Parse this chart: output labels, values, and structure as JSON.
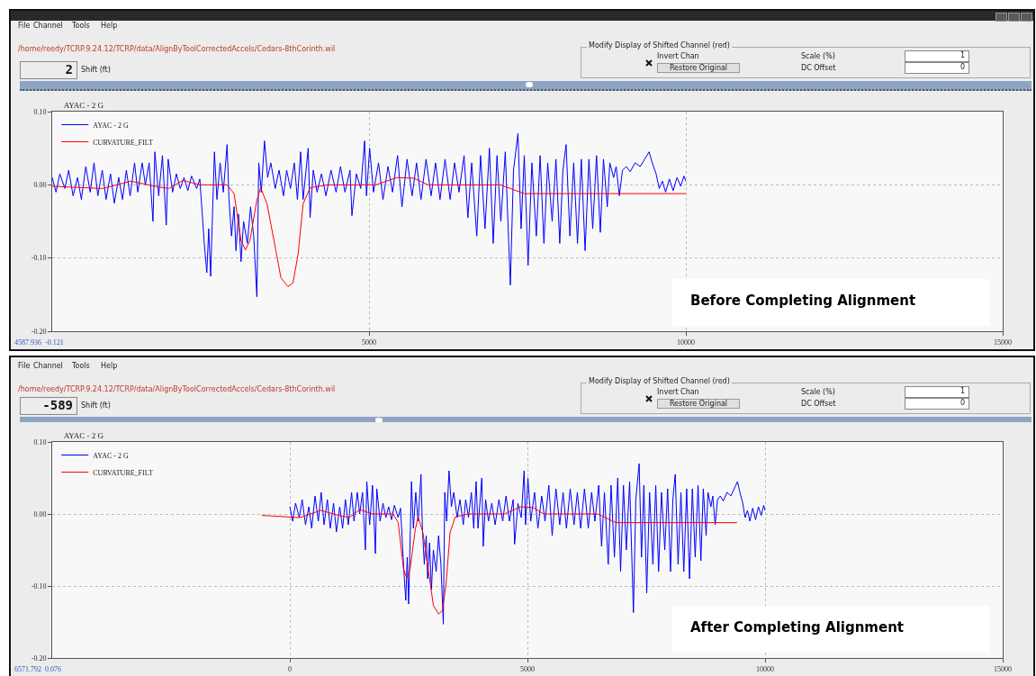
{
  "chart_data": [
    {
      "type": "line",
      "title": "AYAC - 2 G",
      "legend": "top left",
      "grid": true,
      "xlim": [
        0,
        15000
      ],
      "xticks": [
        5000,
        10000,
        15000
      ],
      "ylim": [
        -0.2,
        0.1
      ],
      "yticks": [
        {
          "value": 0.1,
          "label": "0.10"
        },
        {
          "value": 0,
          "label": "0.00"
        },
        {
          "value": -0.1,
          "label": "-0.10"
        },
        {
          "value": -0.2,
          "label": "-0.20"
        }
      ],
      "series": [
        {
          "name": "AYAC - 2 G",
          "color": "#0000ff",
          "x": [
            0,
            60,
            120,
            200,
            260,
            330,
            400,
            460,
            530,
            600,
            660,
            720,
            790,
            850,
            920,
            980,
            1050,
            1110,
            1170,
            1230,
            1300,
            1350,
            1420,
            1470,
            1530,
            1590,
            1620,
            1680,
            1740,
            1800,
            1830,
            1900,
            1960,
            2020,
            2080,
            2140,
            2200,
            2280,
            2330,
            2360,
            2400,
            2440,
            2470,
            2500,
            2530,
            2560,
            2600,
            2650,
            2700,
            2760,
            2790,
            2830,
            2870,
            2900,
            2940,
            2980,
            3020,
            3080,
            3130,
            3180,
            3230,
            3260,
            3300,
            3350,
            3400,
            3450,
            3520,
            3580,
            3650,
            3700,
            3760,
            3820,
            3870,
            3920,
            3960,
            4040,
            4070,
            4120,
            4180,
            4250,
            4320,
            4400,
            4480,
            4550,
            4620,
            4700,
            4730,
            4800,
            4870,
            4930,
            4960,
            5010,
            5070,
            5150,
            5220,
            5300,
            5370,
            5450,
            5520,
            5600,
            5680,
            5750,
            5820,
            5900,
            5980,
            6050,
            6120,
            6200,
            6280,
            6350,
            6420,
            6500,
            6560,
            6620,
            6700,
            6760,
            6830,
            6900,
            6960,
            7020,
            7080,
            7150,
            7230,
            7280,
            7350,
            7400,
            7450,
            7510,
            7570,
            7640,
            7700,
            7760,
            7820,
            7890,
            7950,
            8010,
            8060,
            8110,
            8170,
            8230,
            8290,
            8350,
            8410,
            8470,
            8530,
            8590,
            8650,
            8700,
            8760,
            8800,
            8860,
            8900,
            8950,
            9000,
            9060,
            9120,
            9200,
            9280,
            9350,
            9420,
            9470,
            9530,
            9580,
            9630,
            9680,
            9740,
            9800,
            9860,
            9920,
            9970,
            10000
          ],
          "values": [
            0.01,
            -0.01,
            0.015,
            -0.005,
            0.02,
            -0.015,
            0.01,
            -0.02,
            0.025,
            -0.01,
            0.03,
            -0.015,
            0.02,
            -0.02,
            0.015,
            -0.025,
            0.01,
            -0.02,
            0.02,
            -0.015,
            0.03,
            -0.01,
            0.03,
            0.0,
            0.03,
            -0.05,
            0.045,
            -0.015,
            0.04,
            -0.055,
            0.035,
            -0.01,
            0.015,
            -0.005,
            0.01,
            -0.008,
            0.012,
            -0.005,
            0.008,
            -0.03,
            -0.08,
            -0.12,
            -0.06,
            -0.125,
            -0.04,
            0.045,
            -0.02,
            0.03,
            -0.01,
            0.055,
            -0.02,
            -0.07,
            -0.03,
            -0.09,
            -0.04,
            -0.105,
            -0.05,
            -0.08,
            -0.03,
            -0.07,
            -0.153,
            0.03,
            -0.01,
            0.06,
            0.01,
            0.03,
            -0.005,
            0.02,
            -0.015,
            0.02,
            -0.005,
            0.03,
            -0.02,
            0.045,
            -0.02,
            0.05,
            -0.045,
            0.02,
            -0.01,
            0.015,
            -0.015,
            0.02,
            -0.01,
            0.025,
            -0.01,
            0.02,
            -0.042,
            0.015,
            -0.005,
            0.06,
            -0.015,
            0.05,
            -0.01,
            0.03,
            -0.02,
            0.025,
            -0.01,
            0.04,
            -0.03,
            0.035,
            -0.015,
            0.03,
            -0.02,
            0.035,
            -0.015,
            0.03,
            -0.02,
            0.035,
            -0.02,
            0.03,
            -0.01,
            0.04,
            -0.045,
            0.03,
            -0.07,
            0.04,
            -0.06,
            0.05,
            -0.08,
            0.04,
            -0.05,
            0.045,
            -0.137,
            0.02,
            0.07,
            -0.06,
            0.04,
            -0.11,
            0.03,
            -0.07,
            0.04,
            -0.08,
            0.03,
            -0.05,
            0.035,
            -0.08,
            0.02,
            0.055,
            -0.07,
            0.03,
            -0.08,
            0.035,
            -0.09,
            0.035,
            -0.06,
            0.04,
            -0.065,
            0.035,
            -0.03,
            0.03,
            0.01,
            0.025,
            -0.015,
            0.02,
            0.025,
            0.018,
            0.03,
            0.025,
            0.035,
            0.045,
            0.03,
            0.015,
            -0.005,
            0.005,
            -0.01,
            0.008,
            -0.008,
            0.01,
            -0.002,
            0.012,
            0.005
          ]
        },
        {
          "name": "CURVATURE_FILT",
          "color": "#ff0000",
          "x": [
            0,
            800,
            1240,
            1620,
            1840,
            2060,
            2330,
            2760,
            2870,
            2980,
            3050,
            3120,
            3230,
            3290,
            3390,
            3530,
            3610,
            3720,
            3800,
            3880,
            3960,
            4070,
            4350,
            5110,
            5440,
            5710,
            5930,
            7070,
            7450,
            10000
          ],
          "values": [
            -0.002,
            -0.005,
            0.005,
            -0.002,
            -0.005,
            0.006,
            0,
            0,
            -0.012,
            -0.076,
            -0.089,
            -0.076,
            -0.021,
            -0.004,
            -0.026,
            -0.09,
            -0.127,
            -0.139,
            -0.134,
            -0.095,
            -0.026,
            -0.004,
            0,
            0,
            0.01,
            0.009,
            0,
            0,
            -0.012,
            -0.012
          ]
        }
      ],
      "annotations": [
        "File",
        "Channel",
        "Tools",
        "Help",
        "/home/reedy/TCRP.9.24.12/TCRP/data/AlignByToolCorrectedAccels/Cedars-8thCorinth.wil",
        "2",
        "Shift (ft)",
        "Modify Display of Shifted Channel (red)",
        "Invert Chan",
        "Restore Original",
        "Scale (%)",
        "1",
        "DC Offset",
        "0",
        "4587.936  -0.121",
        "Before Completing Alignment"
      ]
    },
    {
      "type": "line",
      "title": "AYAC - 2 G",
      "legend": "top left",
      "grid": true,
      "xlim": [
        -5000,
        15000
      ],
      "xticks": [
        0,
        5000,
        10000,
        15000
      ],
      "ylim": [
        -0.2,
        0.1
      ],
      "yticks": [
        {
          "value": 0.1,
          "label": "0.10"
        },
        {
          "value": 0,
          "label": "0.00"
        },
        {
          "value": -0.1,
          "label": "-0.10"
        },
        {
          "value": -0.2,
          "label": "-0.20"
        }
      ],
      "series": [
        {
          "name": "AYAC - 2 G",
          "color": "#0000ff",
          "x": [
            0,
            60,
            120,
            200,
            260,
            330,
            400,
            460,
            530,
            600,
            660,
            720,
            790,
            850,
            920,
            980,
            1050,
            1110,
            1170,
            1230,
            1300,
            1350,
            1420,
            1470,
            1530,
            1590,
            1620,
            1680,
            1740,
            1800,
            1830,
            1900,
            1960,
            2020,
            2080,
            2140,
            2200,
            2280,
            2330,
            2360,
            2400,
            2440,
            2470,
            2500,
            2530,
            2560,
            2600,
            2650,
            2700,
            2760,
            2790,
            2830,
            2870,
            2900,
            2940,
            2980,
            3020,
            3080,
            3130,
            3180,
            3230,
            3260,
            3300,
            3350,
            3400,
            3450,
            3520,
            3580,
            3650,
            3700,
            3760,
            3820,
            3870,
            3920,
            3960,
            4040,
            4070,
            4120,
            4180,
            4250,
            4320,
            4400,
            4480,
            4550,
            4620,
            4700,
            4730,
            4800,
            4870,
            4930,
            4960,
            5010,
            5070,
            5150,
            5220,
            5300,
            5370,
            5450,
            5520,
            5600,
            5680,
            5750,
            5820,
            5900,
            5980,
            6050,
            6120,
            6200,
            6280,
            6350,
            6420,
            6500,
            6560,
            6620,
            6700,
            6760,
            6830,
            6900,
            6960,
            7020,
            7080,
            7150,
            7230,
            7280,
            7350,
            7400,
            7450,
            7510,
            7570,
            7640,
            7700,
            7760,
            7820,
            7890,
            7950,
            8010,
            8060,
            8110,
            8170,
            8230,
            8290,
            8350,
            8410,
            8470,
            8530,
            8590,
            8650,
            8700,
            8760,
            8800,
            8860,
            8900,
            8950,
            9000,
            9060,
            9120,
            9200,
            9280,
            9350,
            9420,
            9470,
            9530,
            9580,
            9630,
            9680,
            9740,
            9800,
            9860,
            9920,
            9970,
            10000
          ],
          "values": [
            0.01,
            -0.01,
            0.015,
            -0.005,
            0.02,
            -0.015,
            0.01,
            -0.02,
            0.025,
            -0.01,
            0.03,
            -0.015,
            0.02,
            -0.02,
            0.015,
            -0.025,
            0.01,
            -0.02,
            0.02,
            -0.015,
            0.03,
            -0.01,
            0.03,
            0.0,
            0.03,
            -0.05,
            0.045,
            -0.015,
            0.04,
            -0.055,
            0.035,
            -0.01,
            0.015,
            -0.005,
            0.01,
            -0.008,
            0.012,
            -0.005,
            0.008,
            -0.03,
            -0.08,
            -0.12,
            -0.06,
            -0.125,
            -0.04,
            0.045,
            -0.02,
            0.03,
            -0.01,
            0.055,
            -0.02,
            -0.07,
            -0.03,
            -0.09,
            -0.04,
            -0.105,
            -0.05,
            -0.08,
            -0.03,
            -0.07,
            -0.153,
            0.03,
            -0.01,
            0.06,
            0.01,
            0.03,
            -0.005,
            0.02,
            -0.015,
            0.02,
            -0.005,
            0.03,
            -0.02,
            0.045,
            -0.02,
            0.05,
            -0.045,
            0.02,
            -0.01,
            0.015,
            -0.015,
            0.02,
            -0.01,
            0.025,
            -0.01,
            0.02,
            -0.042,
            0.015,
            -0.005,
            0.06,
            -0.015,
            0.05,
            -0.01,
            0.03,
            -0.02,
            0.025,
            -0.01,
            0.04,
            -0.03,
            0.035,
            -0.015,
            0.03,
            -0.02,
            0.035,
            -0.015,
            0.03,
            -0.02,
            0.035,
            -0.02,
            0.03,
            -0.01,
            0.04,
            -0.045,
            0.03,
            -0.07,
            0.04,
            -0.06,
            0.05,
            -0.08,
            0.04,
            -0.05,
            0.045,
            -0.137,
            0.02,
            0.07,
            -0.06,
            0.04,
            -0.11,
            0.03,
            -0.07,
            0.04,
            -0.08,
            0.03,
            -0.05,
            0.035,
            -0.08,
            0.02,
            0.055,
            -0.07,
            0.03,
            -0.08,
            0.035,
            -0.09,
            0.035,
            -0.06,
            0.04,
            -0.065,
            0.035,
            -0.03,
            0.03,
            0.01,
            0.025,
            -0.015,
            0.02,
            0.025,
            0.018,
            0.03,
            0.025,
            0.035,
            0.045,
            0.03,
            0.015,
            -0.005,
            0.005,
            -0.01,
            0.008,
            -0.008,
            0.01,
            -0.002,
            0.012,
            0.005
          ]
        },
        {
          "name": "CURVATURE_FILT",
          "color": "#ff0000",
          "x": [
            -589,
            211,
            651,
            1031,
            1251,
            1471,
            1741,
            2171,
            2281,
            2391,
            2461,
            2531,
            2641,
            2701,
            2801,
            2941,
            3021,
            3131,
            3211,
            3291,
            3371,
            3481,
            3761,
            4521,
            4851,
            5121,
            5341,
            6481,
            6861,
            9411
          ],
          "values": [
            -0.002,
            -0.005,
            0.005,
            -0.002,
            -0.005,
            0.006,
            0,
            0,
            -0.012,
            -0.076,
            -0.089,
            -0.076,
            -0.021,
            -0.004,
            -0.026,
            -0.09,
            -0.127,
            -0.139,
            -0.134,
            -0.095,
            -0.026,
            -0.004,
            0,
            0,
            0.01,
            0.009,
            0,
            0,
            -0.012,
            -0.012
          ]
        }
      ],
      "annotations": [
        "File",
        "Channel",
        "Tools",
        "Help",
        "/home/reedy/TCRP.9.24.12/TCRP/data/AlignByToolCorrectedAccels/Cedars-8thCorinth.wil",
        "-589",
        "Shift (ft)",
        "Modify Display of Shifted Channel (red)",
        "Invert Chan",
        "Restore Original",
        "Scale (%)",
        "1",
        "DC Offset",
        "0",
        "6571.792  0.076",
        "After Completing Alignment"
      ]
    }
  ]
}
